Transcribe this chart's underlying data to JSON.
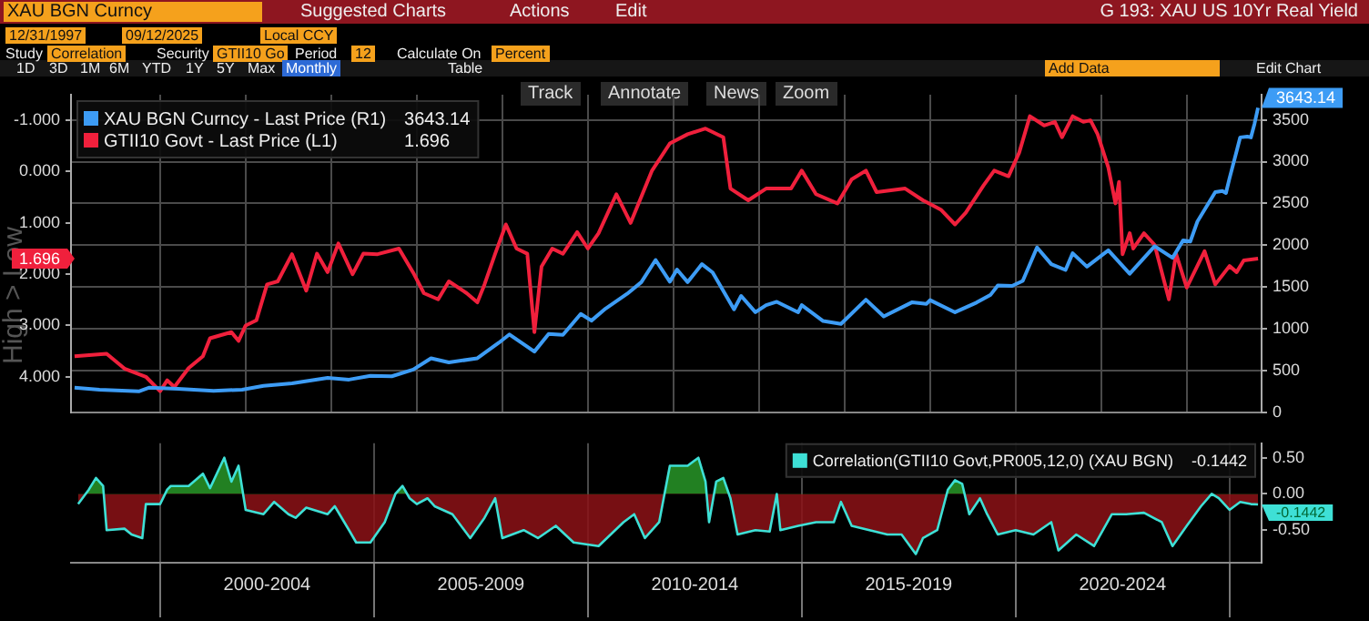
{
  "chart_data": [
    {
      "type": "line",
      "title": "XAU BGN Curncy",
      "subtitle": "G 193: XAU US 10Yr Real Yield",
      "annotations": [
        "Suggested Charts",
        "Actions",
        "Edit",
        "12/31/1997",
        "09/12/2025",
        "Local CCY",
        "Study",
        "Correlation",
        "Security",
        "GTII10 Go",
        "Period",
        "12",
        "Calculate On",
        "Percent",
        "1D",
        "3D",
        "1M",
        "6M",
        "YTD",
        "1Y",
        "5Y",
        "Max",
        "Monthly",
        "Table",
        "Add Data",
        "Edit Chart",
        "Track",
        "Annotate",
        "News",
        "Zoom",
        "High > Low",
        "1.696"
      ],
      "series": [
        {
          "name": "XAU BGN Curncy - Last Price (R1)",
          "color": "#3d9cf5",
          "axis": "y2",
          "x": [
            "1998-01",
            "1998-08",
            "1999-07",
            "1999-10",
            "2000-06",
            "2001-04",
            "2001-12",
            "2002-06",
            "2003-02",
            "2003-12",
            "2004-06",
            "2004-12",
            "2005-06",
            "2005-12",
            "2006-05",
            "2006-10",
            "2007-06",
            "2007-12",
            "2008-03",
            "2008-10",
            "2009-02",
            "2009-06",
            "2009-11",
            "2010-02",
            "2010-06",
            "2010-12",
            "2011-04",
            "2011-08",
            "2011-12",
            "2012-02",
            "2012-05",
            "2012-09",
            "2012-12",
            "2013-06",
            "2013-08",
            "2013-12",
            "2014-03",
            "2014-06",
            "2014-12",
            "2015-01",
            "2015-07",
            "2015-12",
            "2016-07",
            "2016-12",
            "2017-08",
            "2017-12",
            "2018-01",
            "2018-08",
            "2019-02",
            "2019-06",
            "2019-08",
            "2019-12",
            "2020-03",
            "2020-07",
            "2020-11",
            "2021-03",
            "2021-05",
            "2021-09",
            "2022-03",
            "2022-09",
            "2023-04",
            "2023-09",
            "2023-12",
            "2024-02",
            "2024-04",
            "2024-09",
            "2024-11",
            "2024-12",
            "2025-01",
            "2025-03",
            "2025-04",
            "2025-06",
            "2025-07",
            "2025-08",
            "2025-09"
          ],
          "values": [
            300,
            275,
            255,
            300,
            285,
            260,
            275,
            320,
            350,
            415,
            395,
            440,
            435,
            515,
            650,
            600,
            650,
            835,
            935,
            730,
            940,
            930,
            1180,
            1100,
            1245,
            1420,
            1560,
            1825,
            1565,
            1710,
            1560,
            1775,
            1675,
            1235,
            1395,
            1200,
            1285,
            1325,
            1200,
            1285,
            1095,
            1060,
            1350,
            1150,
            1320,
            1300,
            1345,
            1200,
            1315,
            1410,
            1520,
            1515,
            1575,
            1975,
            1775,
            1705,
            1905,
            1745,
            1940,
            1660,
            1990,
            1850,
            2060,
            2045,
            2285,
            2635,
            2650,
            2625,
            2800,
            3125,
            3290,
            3300,
            3290,
            3450,
            3643.14
          ],
          "value_labels": [
            null,
            null,
            null,
            null,
            null,
            null,
            null,
            null,
            null,
            null,
            null,
            null,
            null,
            null,
            null,
            null,
            null,
            null,
            null,
            null,
            null,
            null,
            null,
            null,
            null,
            null,
            null,
            null,
            null,
            null,
            null,
            null,
            null,
            null,
            null,
            null,
            null,
            null,
            null,
            null,
            null,
            null,
            null,
            null,
            null,
            null,
            null,
            null,
            null,
            null,
            null,
            null,
            null,
            null,
            null,
            null,
            null,
            null,
            null,
            null,
            null,
            null,
            null,
            null,
            null,
            null,
            null,
            null,
            null,
            null,
            null,
            null,
            null,
            null,
            "3643.14"
          ]
        },
        {
          "name": "GTII10 Govt - Last Price (L1)",
          "color": "#f0203c",
          "x": [
            "1998-01",
            "1998-10",
            "1999-03",
            "1999-09",
            "2000-01",
            "2000-03",
            "2000-05",
            "2000-09",
            "2001-01",
            "2001-03",
            "2001-09",
            "2001-11",
            "2002-01",
            "2002-04",
            "2002-07",
            "2002-10",
            "2003-02",
            "2003-06",
            "2003-09",
            "2003-12",
            "2004-03",
            "2004-07",
            "2004-10",
            "2005-02",
            "2005-08",
            "2005-12",
            "2006-03",
            "2006-07",
            "2006-10",
            "2007-03",
            "2007-06",
            "2007-08",
            "2007-11",
            "2008-02",
            "2008-05",
            "2008-08",
            "2008-10",
            "2008-12",
            "2009-03",
            "2009-06",
            "2009-10",
            "2010-01",
            "2010-04",
            "2010-09",
            "2011-01",
            "2011-07",
            "2011-12",
            "2012-05",
            "2012-10",
            "2013-03",
            "2013-05",
            "2013-10",
            "2014-03",
            "2014-10",
            "2015-01",
            "2015-05",
            "2015-11",
            "2016-03",
            "2016-07",
            "2016-10",
            "2017-06",
            "2017-11",
            "2018-04",
            "2018-08",
            "2018-11",
            "2019-04",
            "2019-07",
            "2019-11",
            "2020-02",
            "2020-05",
            "2020-09",
            "2020-12",
            "2021-02",
            "2021-05",
            "2021-08",
            "2021-10",
            "2021-12",
            "2022-03",
            "2022-05",
            "2022-06",
            "2022-07",
            "2022-09",
            "2022-10",
            "2023-01",
            "2023-04",
            "2023-06",
            "2023-08",
            "2023-10",
            "2024-01",
            "2024-06",
            "2024-09",
            "2025-01",
            "2025-03",
            "2025-05",
            "2025-09"
          ],
          "values": [
            3.6,
            3.55,
            3.84,
            4.0,
            4.28,
            4.07,
            4.2,
            3.83,
            3.6,
            3.25,
            3.13,
            3.3,
            3.0,
            2.9,
            2.2,
            2.14,
            1.61,
            2.32,
            1.6,
            1.96,
            1.4,
            2.0,
            1.6,
            1.61,
            1.5,
            1.97,
            2.37,
            2.49,
            2.14,
            2.37,
            2.55,
            2.2,
            1.6,
            1.03,
            1.5,
            1.6,
            3.13,
            1.85,
            1.5,
            1.6,
            1.18,
            1.5,
            1.2,
            0.44,
            1.0,
            -0.02,
            -0.55,
            -0.73,
            -0.84,
            -0.67,
            0.33,
            0.56,
            0.33,
            0.33,
            -0.02,
            0.44,
            0.62,
            0.15,
            -0.02,
            0.4,
            0.33,
            0.56,
            0.74,
            1.03,
            0.8,
            0.27,
            -0.02,
            0.09,
            -0.37,
            -1.08,
            -0.9,
            -0.97,
            -0.67,
            -1.08,
            -0.97,
            -1.0,
            -0.73,
            -0.08,
            0.62,
            0.2,
            1.61,
            1.2,
            1.5,
            1.2,
            1.43,
            1.96,
            2.49,
            1.6,
            2.26,
            1.55,
            2.2,
            1.84,
            1.96,
            1.73,
            1.696
          ]
        }
      ],
      "xlim": [
        "1997-12",
        "2025-10"
      ],
      "xticks": [
        {
          "value": "2000",
          "label": null
        },
        {
          "value": "2002",
          "label": null
        },
        {
          "value": "2004",
          "label": null
        },
        {
          "value": "2006",
          "label": null
        },
        {
          "value": "2008",
          "label": null
        },
        {
          "value": "2010",
          "label": null
        },
        {
          "value": "2012",
          "label": null
        },
        {
          "value": "2014",
          "label": null
        },
        {
          "value": "2016",
          "label": null
        },
        {
          "value": "2018",
          "label": null
        },
        {
          "value": "2020",
          "label": null
        },
        {
          "value": "2022",
          "label": null
        },
        {
          "value": "2024",
          "label": null
        }
      ],
      "ylim": [
        4.7,
        -1.5
      ],
      "yticks": [
        {
          "value": -1,
          "label": "-1.000"
        },
        {
          "value": 0,
          "label": "0.000"
        },
        {
          "value": 1,
          "label": "1.000"
        },
        {
          "value": 2,
          "label": "2.000"
        },
        {
          "value": 3,
          "label": "3.000"
        },
        {
          "value": 4,
          "label": "4.000"
        }
      ],
      "y2lim": [
        0,
        3800
      ],
      "y2ticks": [
        0,
        500,
        1000,
        1500,
        2000,
        2500,
        3000,
        3500
      ],
      "grid": true,
      "legend": "top left",
      "tick_labels": "y"
    },
    {
      "type": "area",
      "series": [
        {
          "name": "Correlation(GTII10 Govt,PR005,12,0) (XAU BGN)",
          "color": "#3ee0d6",
          "axis": "y2",
          "x": [
            "1998-02",
            "1998-05",
            "1998-07",
            "1998-09",
            "1998-10",
            "1999-03",
            "1999-05",
            "1999-08",
            "1999-09",
            "2000-01",
            "2000-03",
            "2000-04",
            "2000-09",
            "2001-01",
            "2001-03",
            "2001-07",
            "2001-09",
            "2001-11",
            "2002-01",
            "2002-06",
            "2002-09",
            "2003-01",
            "2003-03",
            "2003-06",
            "2003-12",
            "2004-02",
            "2004-06",
            "2004-08",
            "2004-12",
            "2005-04",
            "2005-07",
            "2005-09",
            "2005-11",
            "2006-01",
            "2006-04",
            "2006-06",
            "2006-11",
            "2007-04",
            "2007-08",
            "2007-11",
            "2008-01",
            "2008-07",
            "2008-11",
            "2009-04",
            "2009-09",
            "2010-04",
            "2010-11",
            "2011-02",
            "2011-05",
            "2011-09",
            "2011-12",
            "2012-05",
            "2012-08",
            "2012-10",
            "2012-11",
            "2013-01",
            "2013-03",
            "2013-05",
            "2013-07",
            "2013-12",
            "2014-04",
            "2014-06",
            "2014-07",
            "2014-12",
            "2015-05",
            "2015-10",
            "2015-12",
            "2016-03",
            "2016-08",
            "2017-01",
            "2017-05",
            "2017-09",
            "2017-11",
            "2018-03",
            "2018-06",
            "2018-08",
            "2018-10",
            "2018-12",
            "2019-03",
            "2019-05",
            "2019-08",
            "2020-01",
            "2020-06",
            "2020-11",
            "2021-01",
            "2021-06",
            "2021-11",
            "2022-04",
            "2022-08",
            "2023-01",
            "2023-06",
            "2023-09",
            "2024-01",
            "2024-05",
            "2024-08",
            "2024-10",
            "2025-01",
            "2025-04",
            "2025-07",
            "2025-09"
          ],
          "values": [
            -0.14,
            0.06,
            0.22,
            0.11,
            -0.5,
            -0.48,
            -0.56,
            -0.61,
            -0.14,
            -0.14,
            0.06,
            0.11,
            0.11,
            0.28,
            0.08,
            0.5,
            0.17,
            0.39,
            -0.22,
            -0.28,
            -0.11,
            -0.28,
            -0.33,
            -0.19,
            -0.28,
            -0.17,
            -0.5,
            -0.67,
            -0.67,
            -0.39,
            0.0,
            0.11,
            -0.06,
            -0.14,
            -0.06,
            -0.17,
            -0.28,
            -0.61,
            -0.33,
            -0.06,
            -0.61,
            -0.5,
            -0.61,
            -0.44,
            -0.67,
            -0.72,
            -0.39,
            -0.28,
            -0.61,
            -0.39,
            0.39,
            0.39,
            0.5,
            0.17,
            -0.39,
            0.17,
            0.22,
            -0.06,
            -0.56,
            -0.5,
            -0.52,
            0.0,
            -0.5,
            -0.44,
            -0.39,
            -0.39,
            -0.11,
            -0.44,
            -0.5,
            -0.56,
            -0.56,
            -0.83,
            -0.61,
            -0.5,
            0.06,
            0.19,
            0.14,
            -0.28,
            -0.06,
            -0.28,
            -0.56,
            -0.5,
            -0.56,
            -0.39,
            -0.78,
            -0.56,
            -0.72,
            -0.28,
            -0.28,
            -0.26,
            -0.39,
            -0.72,
            -0.44,
            -0.17,
            0.0,
            -0.06,
            -0.22,
            -0.11,
            -0.14,
            -0.1442
          ],
          "value_labels": [
            null,
            null,
            null,
            null,
            null,
            null,
            null,
            null,
            null,
            null,
            null,
            null,
            null,
            null,
            null,
            null,
            null,
            null,
            null,
            null,
            null,
            null,
            null,
            null,
            null,
            null,
            null,
            null,
            null,
            null,
            null,
            null,
            null,
            null,
            null,
            null,
            null,
            null,
            null,
            null,
            null,
            null,
            null,
            null,
            null,
            null,
            null,
            null,
            null,
            null,
            null,
            null,
            null,
            null,
            null,
            null,
            null,
            null,
            null,
            null,
            null,
            null,
            null,
            null,
            null,
            null,
            null,
            null,
            null,
            null,
            null,
            null,
            null,
            null,
            null,
            null,
            null,
            null,
            null,
            null,
            null,
            null,
            null,
            null,
            null,
            null,
            null,
            null,
            null,
            null,
            null,
            null,
            null,
            null,
            null,
            null,
            null,
            null,
            null,
            "-0.1442"
          ]
        }
      ],
      "xlim": [
        "1997-12",
        "2025-10"
      ],
      "xticks": [
        {
          "value": "2000",
          "label": null
        },
        {
          "value": "2002-07",
          "label": "2000-2004"
        },
        {
          "value": "2005",
          "label": null
        },
        {
          "value": "2007-07",
          "label": "2005-2009"
        },
        {
          "value": "2010",
          "label": null
        },
        {
          "value": "2012-07",
          "label": "2010-2014"
        },
        {
          "value": "2015",
          "label": null
        },
        {
          "value": "2017-07",
          "label": "2015-2019"
        },
        {
          "value": "2020",
          "label": null
        },
        {
          "value": "2022-07",
          "label": "2020-2024"
        },
        {
          "value": "2025",
          "label": null
        }
      ],
      "y2lim": [
        -0.95,
        0.7
      ],
      "y2ticks": [
        {
          "value": 0.5,
          "label": "0.50"
        },
        {
          "value": 0,
          "label": "0.00"
        },
        {
          "value": -0.5,
          "label": "-0.50"
        }
      ],
      "grid": "x",
      "legend": "top right"
    }
  ]
}
